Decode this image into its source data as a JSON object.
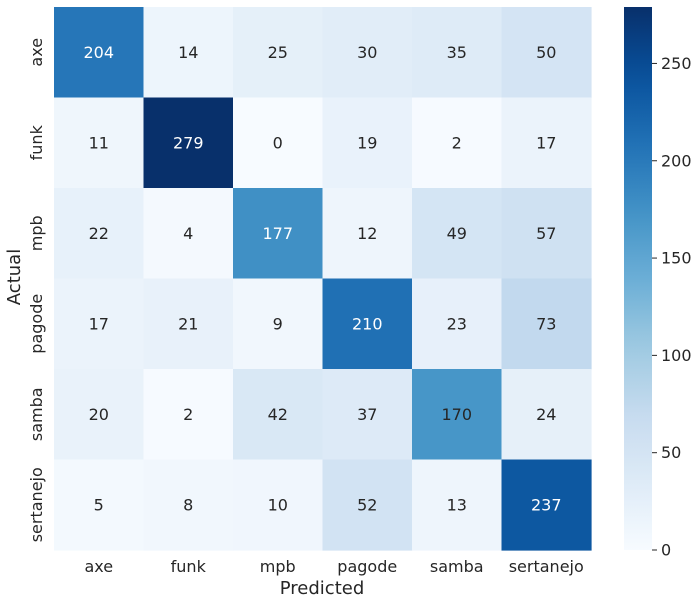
{
  "chart_data": {
    "type": "heatmap",
    "title": "",
    "xlabel": "Predicted",
    "ylabel": "Actual",
    "x_categories": [
      "axe",
      "funk",
      "mpb",
      "pagode",
      "samba",
      "sertanejo"
    ],
    "y_categories": [
      "axe",
      "funk",
      "mpb",
      "pagode",
      "samba",
      "sertanejo"
    ],
    "values": [
      [
        204,
        14,
        25,
        30,
        35,
        50
      ],
      [
        11,
        279,
        0,
        19,
        2,
        17
      ],
      [
        22,
        4,
        177,
        12,
        49,
        57
      ],
      [
        17,
        21,
        9,
        210,
        23,
        73
      ],
      [
        20,
        2,
        42,
        37,
        170,
        24
      ],
      [
        5,
        8,
        10,
        52,
        13,
        237
      ]
    ],
    "colormap": "Blues",
    "vmin": 0,
    "vmax": 279,
    "colorbar": {
      "ticks": [
        0,
        50,
        100,
        150,
        200,
        250
      ]
    },
    "grid": false
  }
}
